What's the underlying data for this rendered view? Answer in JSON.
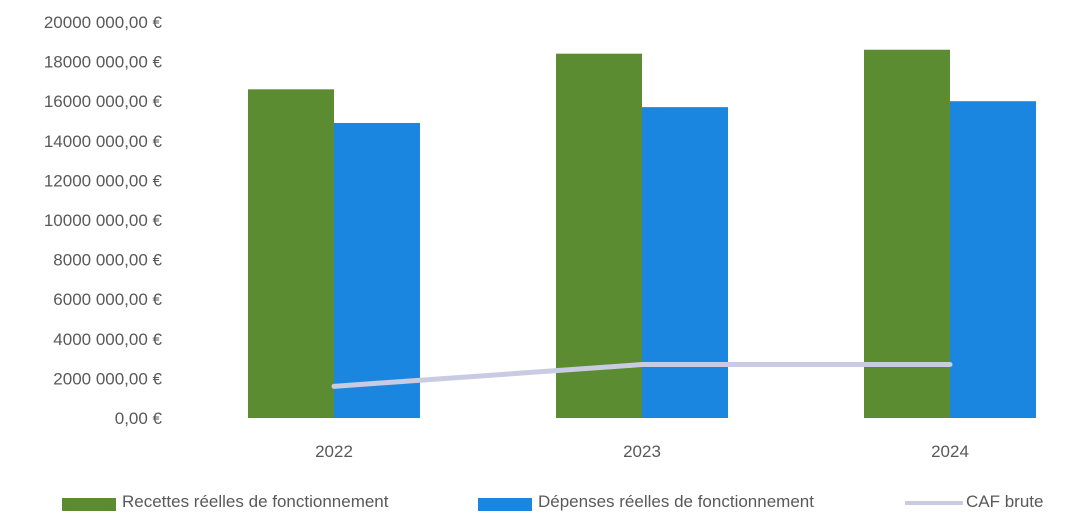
{
  "chart_data": {
    "type": "bar",
    "categories": [
      "2022",
      "2023",
      "2024"
    ],
    "series": [
      {
        "name": "Recettes réelles de fonctionnement",
        "type": "bar",
        "color": "#5b8c32",
        "values": [
          16600000,
          18400000,
          18600000
        ]
      },
      {
        "name": "Dépenses réelles de fonctionnement",
        "type": "bar",
        "color": "#1a86e0",
        "values": [
          14900000,
          15700000,
          16000000
        ]
      },
      {
        "name": "CAF brute",
        "type": "line",
        "color": "#c8cbe2",
        "values": [
          1600000,
          2700000,
          2700000
        ]
      }
    ],
    "yticks": [
      {
        "value": 0,
        "label": "0,00 €"
      },
      {
        "value": 2000000,
        "label": "2000 000,00 €"
      },
      {
        "value": 4000000,
        "label": "4000 000,00 €"
      },
      {
        "value": 6000000,
        "label": "6000 000,00 €"
      },
      {
        "value": 8000000,
        "label": "8000 000,00 €"
      },
      {
        "value": 10000000,
        "label": "10000 000,00 €"
      },
      {
        "value": 12000000,
        "label": "12000 000,00 €"
      },
      {
        "value": 14000000,
        "label": "14000 000,00 €"
      },
      {
        "value": 16000000,
        "label": "16000 000,00 €"
      },
      {
        "value": 18000000,
        "label": "18000 000,00 €"
      },
      {
        "value": 20000000,
        "label": "20000 000,00 €"
      }
    ],
    "ylim": [
      0,
      20000000
    ],
    "legend_position": "bottom",
    "grid": false
  }
}
